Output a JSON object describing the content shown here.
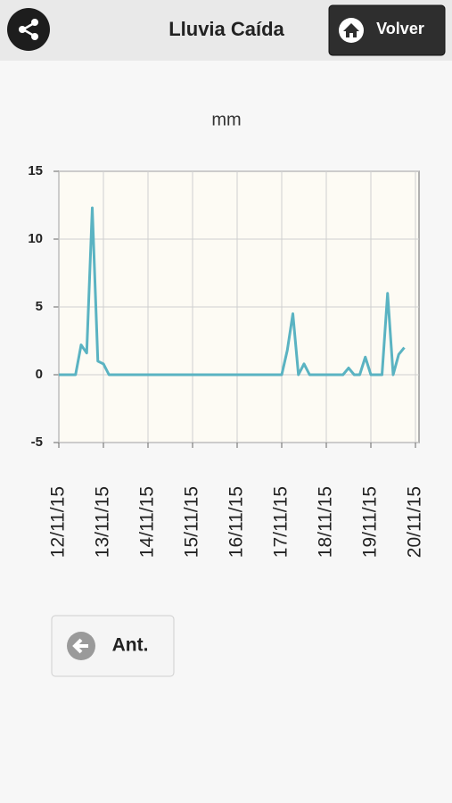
{
  "header": {
    "title": "Lluvia Caída",
    "button": "Volver"
  },
  "chart_data": {
    "type": "line",
    "title": "mm",
    "categories": [
      "12/11/15",
      null,
      null,
      null,
      null,
      null,
      null,
      null,
      "13/11/15",
      null,
      null,
      null,
      null,
      null,
      null,
      null,
      "14/11/15",
      null,
      null,
      null,
      null,
      null,
      null,
      null,
      "15/11/15",
      null,
      null,
      null,
      null,
      null,
      null,
      null,
      "16/11/15",
      null,
      null,
      null,
      null,
      null,
      null,
      null,
      "17/11/15",
      null,
      null,
      null,
      null,
      null,
      null,
      null,
      "18/11/15",
      null,
      null,
      null,
      null,
      null,
      null,
      null,
      "19/11/15",
      null,
      null,
      null,
      null,
      null,
      null,
      null,
      "20/11/15"
    ],
    "values": [
      0,
      0,
      0,
      0,
      2.2,
      1.6,
      12.3,
      1.0,
      0.8,
      0,
      0,
      0,
      0,
      0,
      0,
      0,
      0,
      0,
      0,
      0,
      0,
      0,
      0,
      0,
      0,
      0,
      0,
      0,
      0,
      0,
      0,
      0,
      0,
      0,
      0,
      0,
      0,
      0,
      0,
      0,
      0,
      1.8,
      4.5,
      0,
      0.8,
      0,
      0,
      0,
      0,
      0,
      0,
      0,
      0.5,
      0,
      0,
      1.3,
      0,
      0,
      0,
      6.0,
      0,
      1.5,
      2.0,
      null,
      null
    ],
    "color": "#5ab3c2",
    "ylim": [
      -5,
      15
    ],
    "yticks": [
      -5,
      0,
      5,
      10,
      15
    ],
    "grid": true
  },
  "footer": {
    "button": "Ant."
  }
}
